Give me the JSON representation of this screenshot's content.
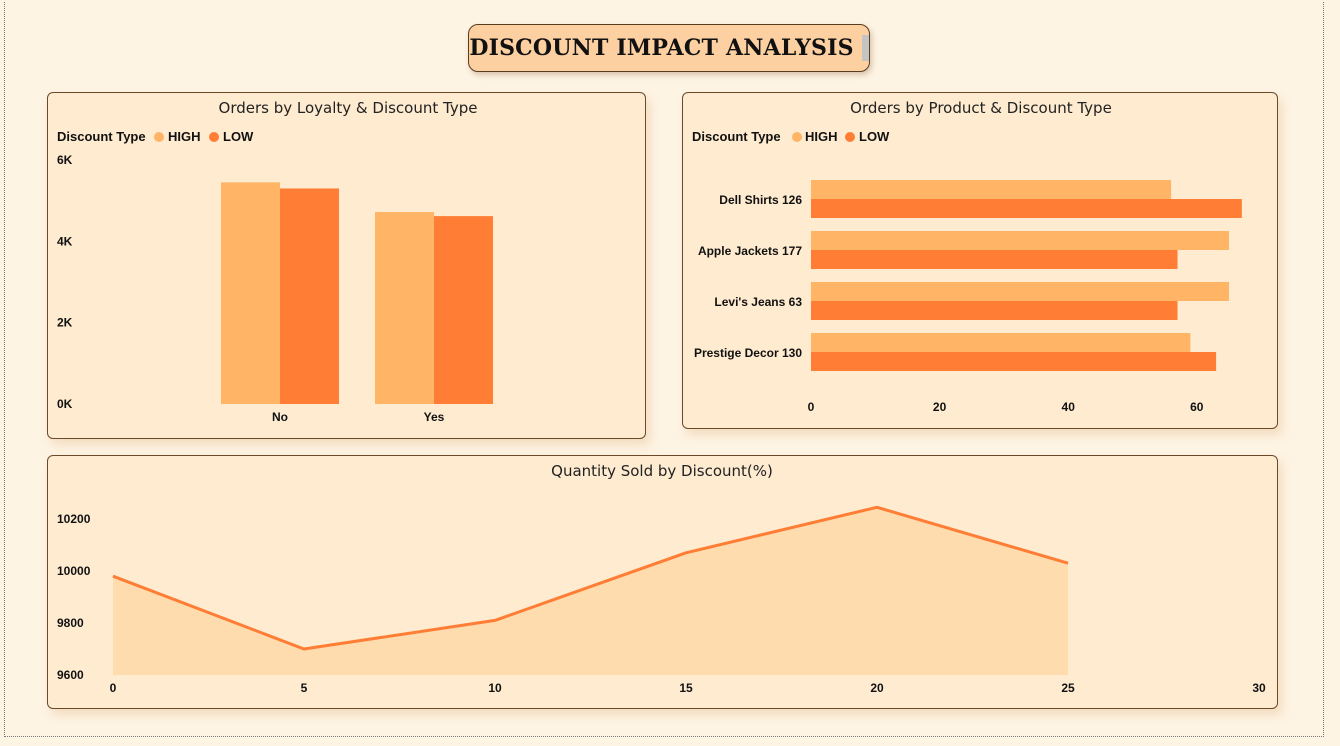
{
  "page": {
    "title": "DISCOUNT IMPACT ANALYSIS"
  },
  "colors": {
    "high": "#ffb466",
    "low": "#ff7d34",
    "line": "#ff7d34",
    "area": "#ffdcae",
    "card_bg": "#feebd0",
    "page_bg": "#fef4e4"
  },
  "chart_data": [
    {
      "type": "bar",
      "title": "Orders by Loyalty & Discount Type",
      "legend_title": "Discount Type",
      "legend_placement": "top-left",
      "categories": [
        "No",
        "Yes"
      ],
      "series": [
        {
          "name": "HIGH",
          "values": [
            5450,
            4720
          ]
        },
        {
          "name": "LOW",
          "values": [
            5300,
            4620
          ]
        }
      ],
      "ylim": [
        0,
        6000
      ],
      "yticks": [
        "0K",
        "2K",
        "4K",
        "6K"
      ],
      "grid": false
    },
    {
      "type": "bar",
      "orientation": "horizontal",
      "title": "Orders by Product & Discount Type",
      "legend_title": "Discount Type",
      "legend_placement": "top-left",
      "categories": [
        "Dell Shirts 126",
        "Apple Jackets 177",
        "Levi's Jeans 63",
        "Prestige Decor 130"
      ],
      "series": [
        {
          "name": "HIGH",
          "values": [
            56,
            65,
            65,
            59
          ]
        },
        {
          "name": "LOW",
          "values": [
            67,
            57,
            57,
            63
          ]
        }
      ],
      "xlim": [
        0,
        70
      ],
      "xticks": [
        "0",
        "20",
        "40",
        "60"
      ],
      "grid": false
    },
    {
      "type": "area",
      "title": "Quantity Sold by Discount(%)",
      "x": [
        0,
        5,
        10,
        15,
        20,
        25
      ],
      "y": [
        9980,
        9700,
        9810,
        10070,
        10245,
        10030
      ],
      "xlim": [
        0,
        30
      ],
      "ylim": [
        9600,
        10300
      ],
      "xticks": [
        "0",
        "5",
        "10",
        "15",
        "20",
        "25",
        "30"
      ],
      "yticks": [
        "9600",
        "9800",
        "10000",
        "10200"
      ],
      "grid": false
    }
  ]
}
